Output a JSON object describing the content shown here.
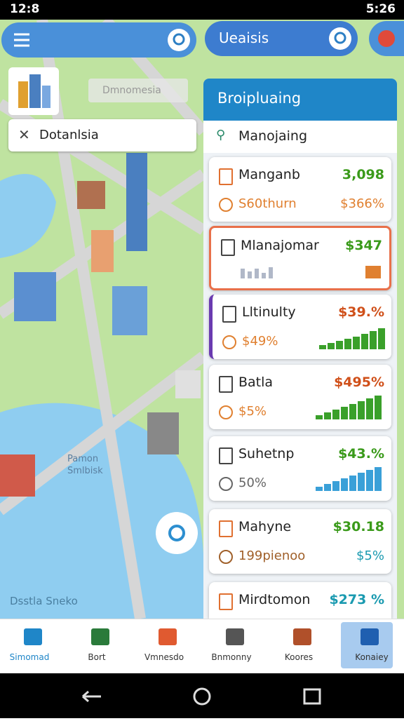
{
  "status_bar": {
    "time": "12:8",
    "clock": "5:26"
  },
  "map": {
    "place_label": "Dmnomesia",
    "search": "Dotanlsia",
    "water_label": [
      "Pamon",
      "Smlbisk"
    ],
    "footer_label": "Dsstla Sneko"
  },
  "top_pill": "Ueaisis",
  "panel": {
    "title": "Broipluaing",
    "search": "Manojaing",
    "cards": [
      {
        "name": "Manganb",
        "value": "3,098",
        "sub": "S60thurn",
        "sub_value": "$366%"
      },
      {
        "name": "Mlanajomar",
        "value": "$347"
      },
      {
        "name": "Lltinulty",
        "value": "$39.%",
        "sub": "$49%"
      },
      {
        "name": "Batla",
        "value": "$495%",
        "sub": "$5%"
      },
      {
        "name": "Suhetnp",
        "value": "$43.%",
        "sub": "50%"
      },
      {
        "name": "Mahyne",
        "value": "$30.18",
        "sub": "199pienoo",
        "sub_value": "$5%"
      },
      {
        "name": "Mirdtomon",
        "value": "$273 %"
      }
    ]
  },
  "nav": {
    "items": [
      "Simomad",
      "Bort",
      "Vmnesdo",
      "Bnmonny",
      "Koores",
      "Konaiey"
    ]
  }
}
